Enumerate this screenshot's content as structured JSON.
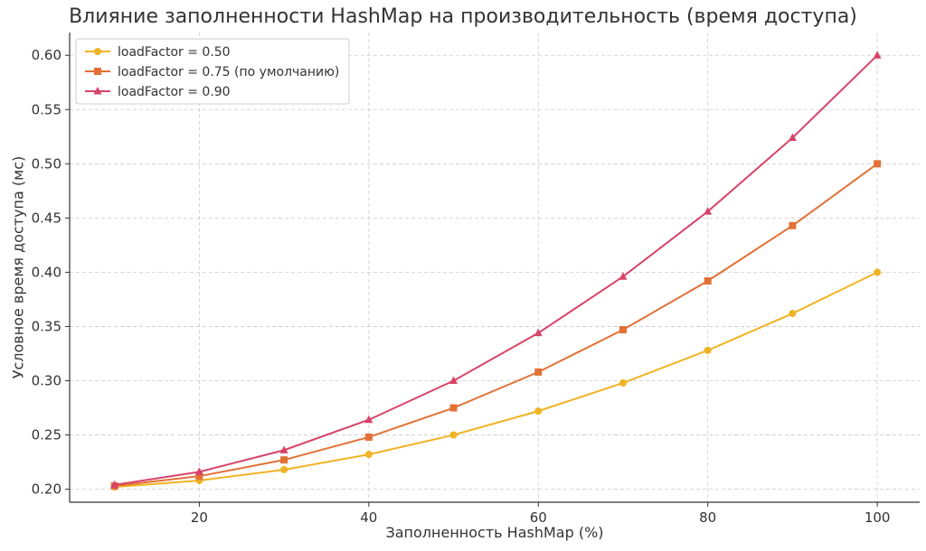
{
  "chart_data": {
    "type": "line",
    "title": "Влияние заполненности HashMap на производительность (время доступа)",
    "xlabel": "Заполненность HashMap (%)",
    "ylabel": "Условное время доступа (мс)",
    "x": [
      10,
      20,
      30,
      40,
      50,
      60,
      70,
      80,
      90,
      100
    ],
    "xticks": [
      20,
      40,
      60,
      80,
      100
    ],
    "yticks": [
      0.2,
      0.25,
      0.3,
      0.35,
      0.4,
      0.45,
      0.5,
      0.55,
      0.6
    ],
    "xlim": [
      4.7,
      105
    ],
    "ylim": [
      0.188,
      0.621
    ],
    "grid": true,
    "legend_position": "top-left",
    "series": [
      {
        "name": "loadFactor = 0.50",
        "color": "#f0b323",
        "marker": "circle",
        "values": [
          0.202,
          0.208,
          0.218,
          0.232,
          0.25,
          0.272,
          0.298,
          0.328,
          0.362,
          0.4
        ]
      },
      {
        "name": "loadFactor = 0.75 (по умолчанию)",
        "color": "#e27136",
        "marker": "square",
        "values": [
          0.203,
          0.212,
          0.227,
          0.248,
          0.275,
          0.308,
          0.347,
          0.392,
          0.443,
          0.5
        ]
      },
      {
        "name": "loadFactor = 0.90",
        "color": "#d84369",
        "marker": "triangle",
        "values": [
          0.204,
          0.216,
          0.236,
          0.264,
          0.3,
          0.344,
          0.396,
          0.456,
          0.524,
          0.6
        ]
      }
    ]
  }
}
